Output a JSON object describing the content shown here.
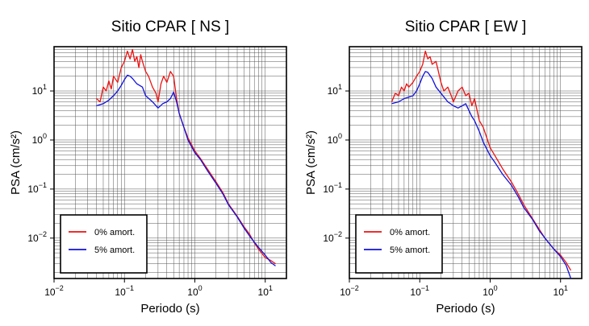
{
  "chart_data": [
    {
      "type": "line",
      "title": "Sitio CPAR [ NS ]",
      "xlabel": "Periodo (s)",
      "ylabel": "PSA (cm/s²)",
      "xscale": "log",
      "yscale": "log",
      "xlim": [
        0.01,
        20
      ],
      "ylim": [
        0.0015,
        80
      ],
      "grid": true,
      "legend_position": "bottom-left",
      "x_ticks": [
        {
          "value": 0.01,
          "base": "10",
          "exp": "−2"
        },
        {
          "value": 0.1,
          "base": "10",
          "exp": "−1"
        },
        {
          "value": 1,
          "base": "10",
          "exp": "0"
        },
        {
          "value": 10,
          "base": "10",
          "exp": "1"
        }
      ],
      "y_ticks": [
        {
          "value": 0.01,
          "base": "10",
          "exp": "−2"
        },
        {
          "value": 0.1,
          "base": "10",
          "exp": "−1"
        },
        {
          "value": 1,
          "base": "10",
          "exp": "0"
        },
        {
          "value": 10,
          "base": "10",
          "exp": "1"
        }
      ],
      "series": [
        {
          "name": "0% amort.",
          "color": "#ee1111",
          "x": [
            0.04,
            0.045,
            0.05,
            0.055,
            0.06,
            0.065,
            0.07,
            0.08,
            0.09,
            0.1,
            0.11,
            0.12,
            0.13,
            0.14,
            0.15,
            0.16,
            0.17,
            0.18,
            0.2,
            0.22,
            0.25,
            0.28,
            0.3,
            0.33,
            0.36,
            0.4,
            0.45,
            0.5,
            0.55,
            0.6,
            0.7,
            0.8,
            1.0,
            1.2,
            1.5,
            2.0,
            2.5,
            3.0,
            4.0,
            5.0,
            6.0,
            7.0,
            8.0,
            10.0,
            12.0,
            14.0
          ],
          "y": [
            7,
            6,
            12,
            10,
            16,
            11,
            20,
            15,
            30,
            40,
            65,
            45,
            70,
            40,
            50,
            30,
            55,
            40,
            25,
            20,
            12,
            9,
            6,
            14,
            20,
            15,
            25,
            20,
            7,
            3.5,
            1.8,
            1.1,
            0.6,
            0.42,
            0.26,
            0.14,
            0.085,
            0.05,
            0.028,
            0.017,
            0.012,
            0.008,
            0.006,
            0.004,
            0.0035,
            0.003
          ]
        },
        {
          "name": "5% amort.",
          "color": "#1111dd",
          "x": [
            0.04,
            0.05,
            0.06,
            0.07,
            0.08,
            0.09,
            0.1,
            0.11,
            0.12,
            0.13,
            0.15,
            0.18,
            0.2,
            0.25,
            0.3,
            0.35,
            0.4,
            0.45,
            0.5,
            0.55,
            0.6,
            0.7,
            0.8,
            1.0,
            1.2,
            1.5,
            2.0,
            2.5,
            3.0,
            4.0,
            5.0,
            6.0,
            8.0,
            10.0,
            12.0,
            14.0
          ],
          "y": [
            5,
            5.5,
            6.5,
            8,
            10,
            13,
            17,
            21,
            20,
            18,
            14,
            12,
            8,
            6,
            4.5,
            5.5,
            6,
            7,
            9.5,
            6,
            3.5,
            1.8,
            1.0,
            0.55,
            0.4,
            0.24,
            0.13,
            0.08,
            0.048,
            0.027,
            0.016,
            0.011,
            0.0065,
            0.0045,
            0.0032,
            0.0027
          ]
        }
      ]
    },
    {
      "type": "line",
      "title": "Sitio CPAR [ EW ]",
      "xlabel": "Periodo (s)",
      "ylabel": "PSA (cm/s²)",
      "xscale": "log",
      "yscale": "log",
      "xlim": [
        0.01,
        20
      ],
      "ylim": [
        0.0015,
        80
      ],
      "grid": true,
      "legend_position": "bottom-left",
      "x_ticks": [
        {
          "value": 0.01,
          "base": "10",
          "exp": "−2"
        },
        {
          "value": 0.1,
          "base": "10",
          "exp": "−1"
        },
        {
          "value": 1,
          "base": "10",
          "exp": "0"
        },
        {
          "value": 10,
          "base": "10",
          "exp": "1"
        }
      ],
      "y_ticks": [
        {
          "value": 0.01,
          "base": "10",
          "exp": "−2"
        },
        {
          "value": 0.1,
          "base": "10",
          "exp": "−1"
        },
        {
          "value": 1,
          "base": "10",
          "exp": "0"
        },
        {
          "value": 10,
          "base": "10",
          "exp": "1"
        }
      ],
      "series": [
        {
          "name": "0% amort.",
          "color": "#ee1111",
          "x": [
            0.04,
            0.045,
            0.05,
            0.055,
            0.06,
            0.065,
            0.07,
            0.08,
            0.09,
            0.1,
            0.11,
            0.12,
            0.13,
            0.14,
            0.15,
            0.17,
            0.2,
            0.22,
            0.25,
            0.28,
            0.3,
            0.35,
            0.4,
            0.45,
            0.5,
            0.55,
            0.6,
            0.7,
            0.8,
            1.0,
            1.2,
            1.5,
            2.0,
            2.5,
            3.0,
            4.0,
            5.0,
            6.0,
            8.0,
            10.0,
            12.0,
            14.0
          ],
          "y": [
            6,
            9,
            8,
            12,
            10,
            14,
            12,
            15,
            20,
            25,
            35,
            65,
            45,
            50,
            35,
            40,
            15,
            10,
            12,
            8,
            6,
            10,
            12,
            8,
            9,
            5,
            7,
            2.5,
            1.8,
            0.7,
            0.45,
            0.26,
            0.14,
            0.08,
            0.048,
            0.025,
            0.015,
            0.01,
            0.006,
            0.0045,
            0.0032,
            0.0022
          ]
        },
        {
          "name": "5% amort.",
          "color": "#1111dd",
          "x": [
            0.04,
            0.05,
            0.06,
            0.07,
            0.08,
            0.09,
            0.1,
            0.11,
            0.12,
            0.13,
            0.15,
            0.17,
            0.2,
            0.25,
            0.3,
            0.35,
            0.4,
            0.45,
            0.5,
            0.55,
            0.6,
            0.7,
            0.8,
            1.0,
            1.2,
            1.5,
            2.0,
            2.5,
            3.0,
            4.0,
            5.0,
            6.0,
            8.0,
            10.0,
            12.0,
            14.0
          ],
          "y": [
            5.5,
            6,
            7,
            7.5,
            8,
            10,
            14,
            20,
            25,
            24,
            18,
            12,
            9,
            6,
            5,
            4.5,
            5,
            5.5,
            4,
            3,
            2.5,
            1.5,
            0.9,
            0.48,
            0.33,
            0.2,
            0.12,
            0.07,
            0.042,
            0.024,
            0.014,
            0.01,
            0.006,
            0.0042,
            0.0028,
            0.0015
          ]
        }
      ]
    }
  ]
}
